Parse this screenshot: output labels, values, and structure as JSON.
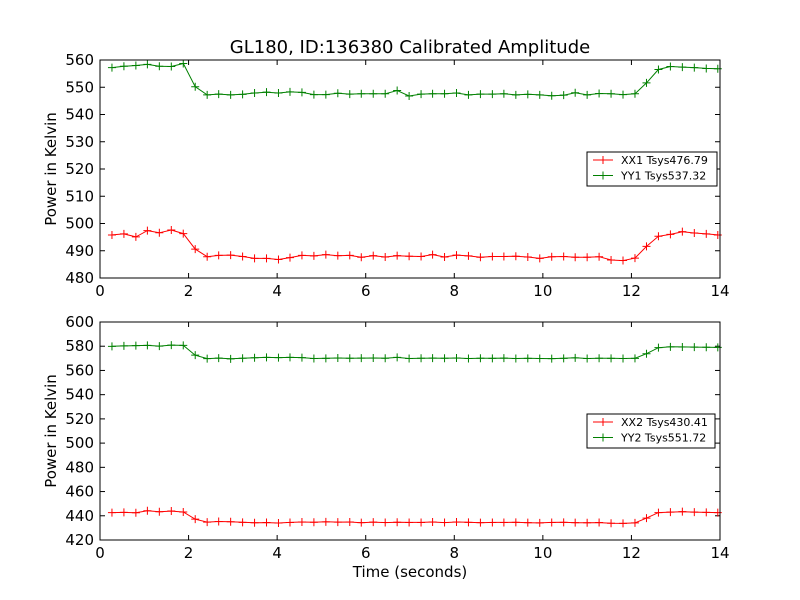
{
  "figure": {
    "title": "GL180, ID:136380 Calibrated Amplitude"
  },
  "chart_data": [
    {
      "type": "line",
      "title": "GL180, ID:136380 Calibrated Amplitude",
      "xlabel": "",
      "ylabel": "Power in Kelvin",
      "xlim": [
        0,
        14
      ],
      "ylim": [
        480,
        560
      ],
      "xticks": [
        "0",
        "2",
        "4",
        "6",
        "8",
        "10",
        "12",
        "14"
      ],
      "yticks": [
        "480",
        "490",
        "500",
        "510",
        "520",
        "530",
        "540",
        "550",
        "560"
      ],
      "grid": false,
      "legend_position": "center-right",
      "x": [
        0.27,
        0.54,
        0.81,
        1.07,
        1.34,
        1.61,
        1.88,
        2.15,
        2.42,
        2.68,
        2.95,
        3.22,
        3.49,
        3.76,
        4.03,
        4.29,
        4.56,
        4.83,
        5.1,
        5.37,
        5.64,
        5.9,
        6.17,
        6.44,
        6.71,
        6.98,
        7.25,
        7.51,
        7.78,
        8.05,
        8.32,
        8.59,
        8.86,
        9.12,
        9.39,
        9.66,
        9.93,
        10.2,
        10.47,
        10.73,
        11.0,
        11.27,
        11.54,
        11.81,
        12.08,
        12.34,
        12.61,
        12.88,
        13.15,
        13.42,
        13.69,
        13.95
      ],
      "series": [
        {
          "name": "XX1 Tsys476.79",
          "color": "#ff0000",
          "values": [
            495.8,
            496.2,
            495.1,
            497.4,
            496.6,
            497.6,
            496.3,
            490.6,
            487.8,
            488.3,
            488.4,
            487.9,
            487.2,
            487.2,
            486.8,
            487.5,
            488.3,
            488.1,
            488.6,
            488.2,
            488.3,
            487.6,
            488.2,
            487.7,
            488.2,
            488.0,
            487.9,
            488.6,
            487.7,
            488.4,
            488.1,
            487.6,
            487.9,
            487.9,
            488.0,
            487.7,
            487.2,
            487.8,
            487.9,
            487.6,
            487.6,
            487.8,
            486.6,
            486.4,
            487.3,
            491.6,
            495.3,
            496.0,
            497.0,
            496.5,
            496.2,
            495.8
          ]
        },
        {
          "name": "YY1 Tsys537.32",
          "color": "#008000",
          "values": [
            557.2,
            557.7,
            558.0,
            558.4,
            557.7,
            557.6,
            558.7,
            550.2,
            547.2,
            547.5,
            547.2,
            547.4,
            547.9,
            548.2,
            547.9,
            548.3,
            548.1,
            547.3,
            547.3,
            547.8,
            547.5,
            547.6,
            547.6,
            547.6,
            548.8,
            546.8,
            547.5,
            547.6,
            547.6,
            547.9,
            547.2,
            547.5,
            547.5,
            547.6,
            547.2,
            547.4,
            547.2,
            546.9,
            547.1,
            548.0,
            547.2,
            547.7,
            547.6,
            547.3,
            547.6,
            551.6,
            556.5,
            557.6,
            557.4,
            557.2,
            556.9,
            556.8
          ]
        }
      ]
    },
    {
      "type": "line",
      "title": "",
      "xlabel": "Time (seconds)",
      "ylabel": "Power in Kelvin",
      "xlim": [
        0,
        14
      ],
      "ylim": [
        420,
        600
      ],
      "xticks": [
        "0",
        "2",
        "4",
        "6",
        "8",
        "10",
        "12",
        "14"
      ],
      "yticks": [
        "420",
        "440",
        "460",
        "480",
        "500",
        "520",
        "540",
        "560",
        "580",
        "600"
      ],
      "grid": false,
      "legend_position": "center-right",
      "x": [
        0.27,
        0.54,
        0.81,
        1.07,
        1.34,
        1.61,
        1.88,
        2.15,
        2.42,
        2.68,
        2.95,
        3.22,
        3.49,
        3.76,
        4.03,
        4.29,
        4.56,
        4.83,
        5.1,
        5.37,
        5.64,
        5.9,
        6.17,
        6.44,
        6.71,
        6.98,
        7.25,
        7.51,
        7.78,
        8.05,
        8.32,
        8.59,
        8.86,
        9.12,
        9.39,
        9.66,
        9.93,
        10.2,
        10.47,
        10.73,
        11.0,
        11.27,
        11.54,
        11.81,
        12.08,
        12.34,
        12.61,
        12.88,
        13.15,
        13.42,
        13.69,
        13.95
      ],
      "series": [
        {
          "name": "XX2 Tsys430.41",
          "color": "#ff0000",
          "values": [
            442.6,
            442.8,
            442.5,
            444.1,
            443.3,
            443.9,
            443.1,
            437.2,
            434.8,
            435.3,
            435.1,
            434.6,
            434.2,
            434.4,
            434.0,
            434.5,
            434.9,
            434.7,
            435.0,
            434.8,
            434.9,
            434.3,
            434.8,
            434.4,
            434.7,
            434.5,
            434.5,
            434.9,
            434.4,
            434.9,
            434.6,
            434.3,
            434.5,
            434.5,
            434.6,
            434.3,
            434.1,
            434.5,
            434.6,
            434.3,
            434.2,
            434.4,
            433.8,
            433.7,
            434.1,
            438.1,
            442.6,
            443.0,
            443.4,
            443.0,
            442.8,
            442.6
          ]
        },
        {
          "name": "YY2 Tsys551.72",
          "color": "#008000",
          "values": [
            579.9,
            580.3,
            580.5,
            580.7,
            580.1,
            580.9,
            580.7,
            572.6,
            569.8,
            570.2,
            569.6,
            570.1,
            570.5,
            570.8,
            570.6,
            570.8,
            570.6,
            569.9,
            570.0,
            570.3,
            570.1,
            570.2,
            570.3,
            570.1,
            570.8,
            569.9,
            570.1,
            570.2,
            570.1,
            570.3,
            569.9,
            570.1,
            570.0,
            570.2,
            569.9,
            570.0,
            569.9,
            569.8,
            570.0,
            570.4,
            569.9,
            570.1,
            570.0,
            569.9,
            570.0,
            573.8,
            578.8,
            579.5,
            579.4,
            579.3,
            579.1,
            579.0
          ]
        }
      ]
    }
  ]
}
